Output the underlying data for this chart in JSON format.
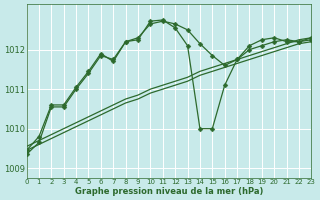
{
  "xlabel": "Graphe pression niveau de la mer (hPa)",
  "background_color": "#c8eaea",
  "grid_color": "#ffffff",
  "line_color": "#2d6a2d",
  "xlim": [
    0,
    23
  ],
  "ylim": [
    1008.75,
    1013.15
  ],
  "yticks": [
    1009,
    1010,
    1011,
    1012
  ],
  "xticks": [
    0,
    1,
    2,
    3,
    4,
    5,
    6,
    7,
    8,
    9,
    10,
    11,
    12,
    13,
    14,
    15,
    16,
    17,
    18,
    19,
    20,
    21,
    22,
    23
  ],
  "series": [
    {
      "x": [
        0,
        1,
        2,
        3,
        4,
        5,
        6,
        7,
        8,
        9,
        10,
        11,
        12,
        13,
        14,
        15,
        16,
        17,
        18,
        19,
        20,
        21,
        22,
        23
      ],
      "y": [
        1009.45,
        1009.6,
        1009.75,
        1009.9,
        1010.05,
        1010.2,
        1010.35,
        1010.5,
        1010.65,
        1010.75,
        1010.9,
        1011.0,
        1011.1,
        1011.2,
        1011.35,
        1011.45,
        1011.55,
        1011.65,
        1011.75,
        1011.85,
        1011.95,
        1012.05,
        1012.15,
        1012.2
      ],
      "marker": false
    },
    {
      "x": [
        0,
        1,
        2,
        3,
        4,
        5,
        6,
        7,
        8,
        9,
        10,
        11,
        12,
        13,
        14,
        15,
        16,
        17,
        18,
        19,
        20,
        21,
        22,
        23
      ],
      "y": [
        1009.55,
        1009.7,
        1009.85,
        1010.0,
        1010.15,
        1010.3,
        1010.45,
        1010.6,
        1010.75,
        1010.85,
        1011.0,
        1011.1,
        1011.2,
        1011.3,
        1011.45,
        1011.55,
        1011.65,
        1011.75,
        1011.85,
        1011.95,
        1012.05,
        1012.15,
        1012.25,
        1012.3
      ],
      "marker": false
    },
    {
      "x": [
        0,
        1,
        2,
        3,
        4,
        5,
        6,
        7,
        8,
        9,
        10,
        11,
        12,
        13,
        14,
        15,
        16,
        17,
        18,
        19,
        20,
        21,
        22,
        23
      ],
      "y": [
        1009.35,
        1009.65,
        1010.55,
        1010.55,
        1011.0,
        1011.4,
        1011.85,
        1011.75,
        1012.2,
        1012.3,
        1012.65,
        1012.72,
        1012.65,
        1012.5,
        1012.15,
        1011.85,
        1011.6,
        1011.75,
        1012.0,
        1012.1,
        1012.2,
        1012.25,
        1012.2,
        1012.25
      ],
      "marker": true
    },
    {
      "x": [
        0,
        1,
        2,
        3,
        4,
        5,
        6,
        7,
        8,
        9,
        10,
        11,
        12,
        13,
        14,
        15,
        16,
        17,
        18,
        19,
        20,
        21,
        22,
        23
      ],
      "y": [
        1009.45,
        1009.8,
        1010.6,
        1010.6,
        1011.05,
        1011.45,
        1011.9,
        1011.7,
        1012.2,
        1012.25,
        1012.72,
        1012.75,
        1012.55,
        1012.1,
        1010.0,
        1010.0,
        1011.1,
        1011.75,
        1012.1,
        1012.25,
        1012.3,
        1012.2,
        1012.2,
        1012.3
      ],
      "marker": true
    }
  ]
}
